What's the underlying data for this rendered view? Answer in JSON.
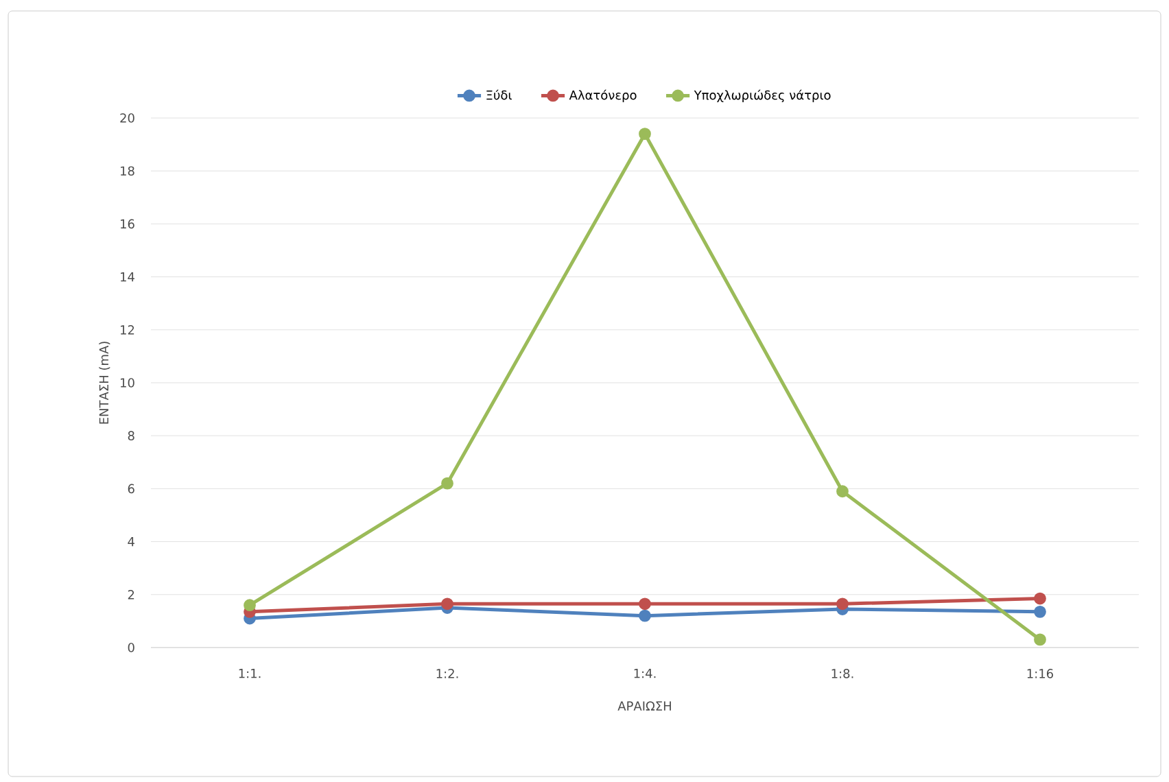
{
  "chart_data": {
    "type": "line",
    "xlabel": "ΑΡΑΙΩΣΗ",
    "ylabel": "ΕΝΤΑΣΗ (mA)",
    "categories": [
      "1:1.",
      "1:2.",
      "1:4.",
      "1:8.",
      "1:16"
    ],
    "series": [
      {
        "name": "Ξύδι",
        "color": "#4f81bd",
        "values": [
          1.1,
          1.5,
          1.2,
          1.45,
          1.35
        ]
      },
      {
        "name": "Αλατόνερο",
        "color": "#c0504d",
        "values": [
          1.35,
          1.65,
          1.65,
          1.65,
          1.85
        ]
      },
      {
        "name": "Υποχλωριώδες νάτριο",
        "color": "#9bbb59",
        "values": [
          1.6,
          6.2,
          19.4,
          5.9,
          0.3
        ]
      }
    ],
    "ylim": [
      0,
      20
    ],
    "yticks": [
      0,
      2,
      4,
      6,
      8,
      10,
      12,
      14,
      16,
      18,
      20
    ],
    "grid": "y",
    "legend": "top",
    "marker": "circle",
    "line_style": "solid"
  }
}
